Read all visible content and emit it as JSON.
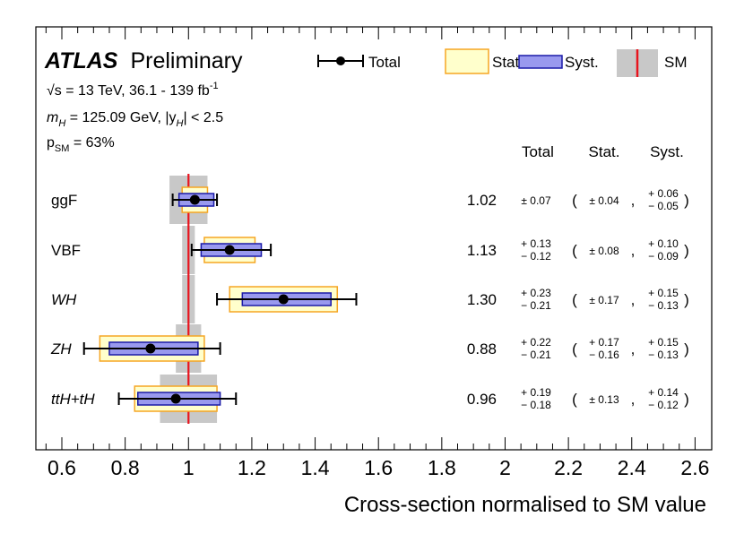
{
  "chart_data": {
    "type": "scatter",
    "subtype": "error-bar summary",
    "title_bold": "ATLAS",
    "title_rest": "Preliminary",
    "annotation_energy_prefix": "√s = 13 TeV, 36.1 - 139 fb",
    "annotation_energy_sup": "-1",
    "annotation_mass_m": "m",
    "annotation_mass_sub": "H",
    "annotation_mass_rest": " = 125.09 GeV, |y",
    "annotation_mass_sub2": "H",
    "annotation_mass_end": "| < 2.5",
    "annotation_psm_p": "p",
    "annotation_psm_sub": "SM",
    "annotation_psm_rest": " = 63%",
    "legend": [
      {
        "key": "total",
        "label": "Total"
      },
      {
        "key": "stat",
        "label": "Stat."
      },
      {
        "key": "syst",
        "label": "Syst."
      },
      {
        "key": "sm",
        "label": "SM"
      }
    ],
    "column_headers": {
      "total": "Total",
      "stat": "Stat.",
      "syst": "Syst."
    },
    "xlabel": "Cross-section normalised to SM value",
    "xlim": [
      0.5,
      2.6
    ],
    "xticks": [
      0.6,
      0.8,
      1,
      1.2,
      1.4,
      1.6,
      1.8,
      2,
      2.2,
      2.4,
      2.6
    ],
    "xtick_labels": [
      "0.6",
      "0.8",
      "1",
      "1.2",
      "1.4",
      "1.6",
      "1.8",
      "2",
      "2.2",
      "2.4",
      "2.6"
    ],
    "sm_value": 1.0,
    "rows": [
      {
        "label": "ggF",
        "italic": false,
        "value": 1.02,
        "value_label": "1.02",
        "total": [
          0.07,
          0.07
        ],
        "stat": [
          0.04,
          0.04
        ],
        "syst": [
          0.06,
          0.05
        ],
        "sm_band": [
          0.94,
          1.06
        ],
        "total_text": {
          "sym": "± 0.07"
        },
        "stat_text": {
          "sym": "± 0.04"
        },
        "syst_text": {
          "up": "+ 0.06",
          "down": "− 0.05"
        }
      },
      {
        "label": "VBF",
        "italic": false,
        "value": 1.13,
        "value_label": "1.13",
        "total": [
          0.13,
          0.12
        ],
        "stat": [
          0.08,
          0.08
        ],
        "syst": [
          0.1,
          0.09
        ],
        "sm_band": [
          0.98,
          1.02
        ],
        "total_text": {
          "up": "+ 0.13",
          "down": "− 0.12"
        },
        "stat_text": {
          "sym": "± 0.08"
        },
        "syst_text": {
          "up": "+ 0.10",
          "down": "− 0.09"
        }
      },
      {
        "label": "WH",
        "italic": true,
        "value": 1.3,
        "value_label": "1.30",
        "total": [
          0.23,
          0.21
        ],
        "stat": [
          0.17,
          0.17
        ],
        "syst": [
          0.15,
          0.13
        ],
        "sm_band": [
          0.98,
          1.02
        ],
        "total_text": {
          "up": "+ 0.23",
          "down": "− 0.21"
        },
        "stat_text": {
          "sym": "± 0.17"
        },
        "syst_text": {
          "up": "+ 0.15",
          "down": "− 0.13"
        }
      },
      {
        "label": "ZH",
        "italic": true,
        "value": 0.88,
        "value_label": "0.88",
        "total": [
          0.22,
          0.21
        ],
        "stat": [
          0.17,
          0.16
        ],
        "syst": [
          0.15,
          0.13
        ],
        "sm_band": [
          0.96,
          1.04
        ],
        "total_text": {
          "up": "+ 0.22",
          "down": "− 0.21"
        },
        "stat_text": {
          "up": "+ 0.17",
          "down": "− 0.16"
        },
        "syst_text": {
          "up": "+ 0.15",
          "down": "− 0.13"
        }
      },
      {
        "label": "ttH+tH",
        "italic": true,
        "value": 0.96,
        "value_label": "0.96",
        "total": [
          0.19,
          0.18
        ],
        "stat": [
          0.13,
          0.13
        ],
        "syst": [
          0.14,
          0.12
        ],
        "sm_band": [
          0.91,
          1.09
        ],
        "total_text": {
          "up": "+ 0.19",
          "down": "− 0.18"
        },
        "stat_text": {
          "sym": "± 0.13"
        },
        "syst_text": {
          "up": "+ 0.14",
          "down": "− 0.12"
        }
      }
    ],
    "colors": {
      "sm_band": "#c8c8c8",
      "sm_line": "#e8141e",
      "stat_fill": "#ffffcc",
      "stat_edge": "#f5a623",
      "syst_fill": "#9999ee",
      "syst_edge": "#1a1aa8",
      "total": "#000000"
    }
  }
}
